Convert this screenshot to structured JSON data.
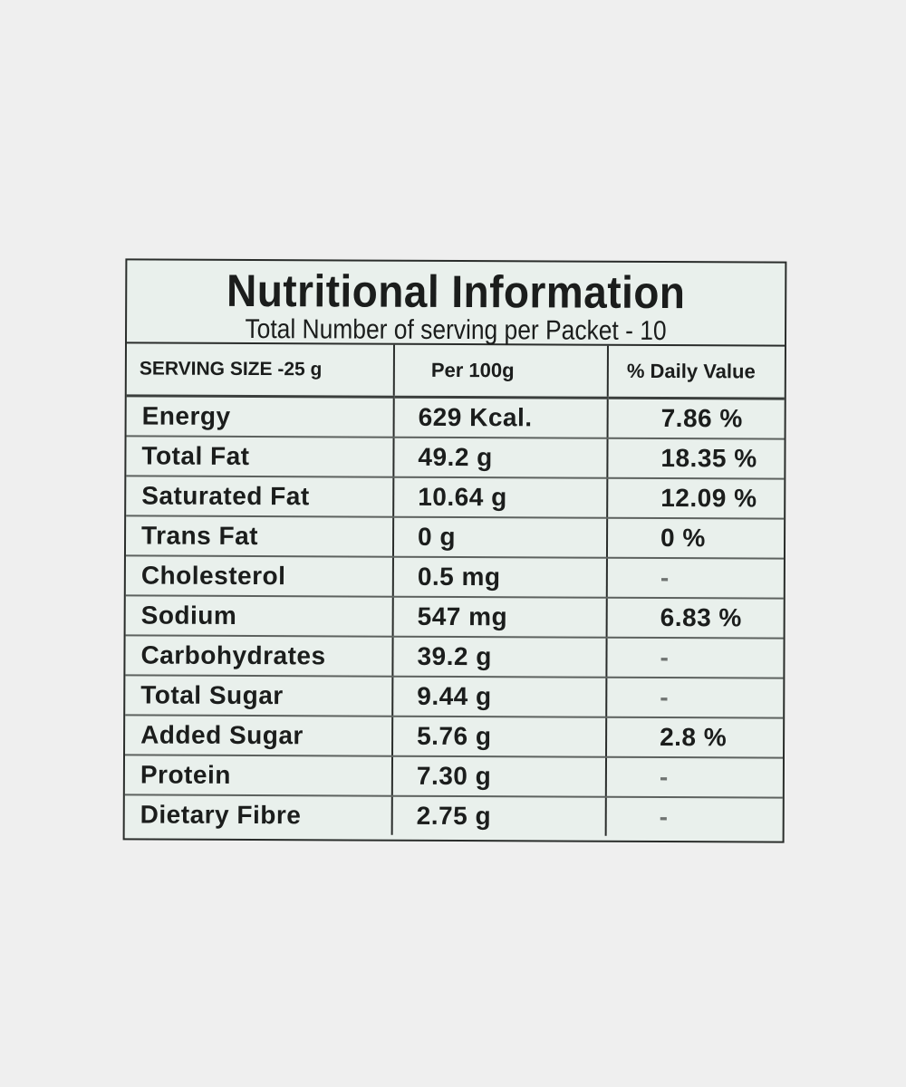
{
  "panel": {
    "title": "Nutritional Information",
    "subtitle": "Total Number of serving per Packet - 10"
  },
  "table": {
    "headers": [
      "SERVING SIZE -25 g",
      "Per 100g",
      "% Daily Value"
    ],
    "rows": [
      {
        "nutrient": "Energy",
        "per_100g": "629 Kcal.",
        "daily_value": "7.86 %"
      },
      {
        "nutrient": "Total Fat",
        "per_100g": "49.2 g",
        "daily_value": "18.35 %"
      },
      {
        "nutrient": "Saturated Fat",
        "per_100g": "10.64 g",
        "daily_value": "12.09 %"
      },
      {
        "nutrient": "Trans Fat",
        "per_100g": "0 g",
        "daily_value": "0 %"
      },
      {
        "nutrient": "Cholesterol",
        "per_100g": "0.5 mg",
        "daily_value": "-"
      },
      {
        "nutrient": "Sodium",
        "per_100g": "547 mg",
        "daily_value": "6.83 %"
      },
      {
        "nutrient": "Carbohydrates",
        "per_100g": "39.2 g",
        "daily_value": "-"
      },
      {
        "nutrient": "Total Sugar",
        "per_100g": "9.44 g",
        "daily_value": "-"
      },
      {
        "nutrient": "Added Sugar",
        "per_100g": "5.76 g",
        "daily_value": "2.8 %"
      },
      {
        "nutrient": "Protein",
        "per_100g": "7.30 g",
        "daily_value": "-"
      },
      {
        "nutrient": "Dietary Fibre",
        "per_100g": "2.75 g",
        "daily_value": "-"
      }
    ]
  },
  "colors": {
    "background": "#efefef",
    "label_background": "#e9f0ec",
    "ink": "#1b1d1c"
  }
}
